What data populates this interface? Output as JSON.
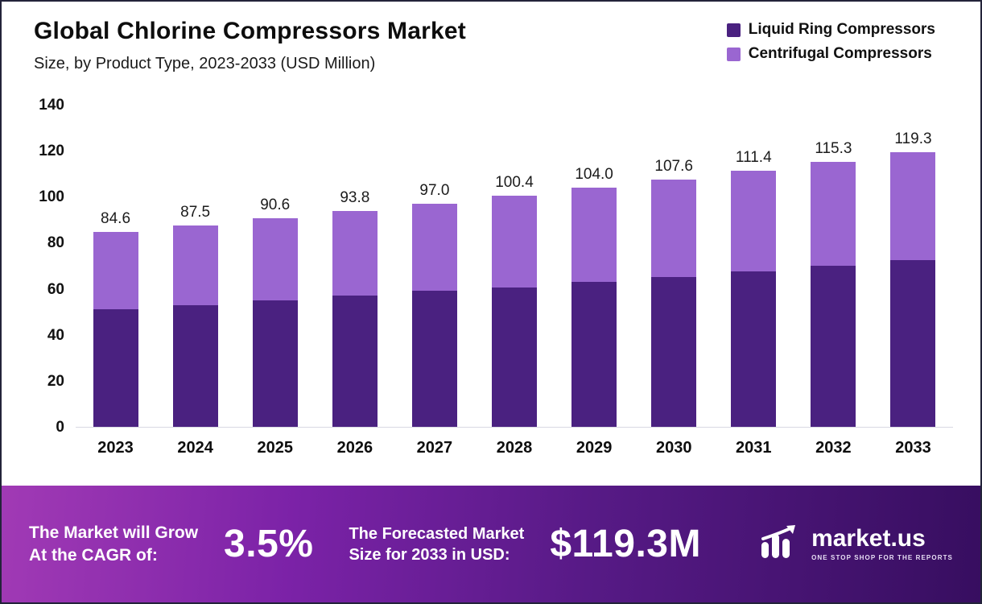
{
  "header": {
    "title": "Global Chlorine Compressors Market",
    "subtitle": "Size, by Product Type, 2023-2033 (USD Million)"
  },
  "legend": {
    "items": [
      {
        "label": "Liquid Ring Compressors",
        "color": "#4a2180"
      },
      {
        "label": "Centrifugal Compressors",
        "color": "#9a66d1"
      }
    ]
  },
  "chart_data": {
    "type": "bar",
    "stacked": true,
    "title": "Global Chlorine Compressors Market Size, by Product Type, 2023-2033 (USD Million)",
    "xlabel": "",
    "ylabel": "USD Million",
    "ylim": [
      0,
      140
    ],
    "yticks": [
      0,
      20,
      40,
      60,
      80,
      100,
      120,
      140
    ],
    "grid": false,
    "legend_position": "top-right",
    "categories": [
      "2023",
      "2024",
      "2025",
      "2026",
      "2027",
      "2028",
      "2029",
      "2030",
      "2031",
      "2032",
      "2033"
    ],
    "series": [
      {
        "name": "Liquid Ring Compressors",
        "color": "#4a2180",
        "values": [
          51.0,
          53.0,
          55.0,
          57.0,
          59.0,
          60.5,
          63.0,
          65.0,
          67.5,
          70.0,
          72.5
        ]
      },
      {
        "name": "Centrifugal Compressors",
        "color": "#9a66d1",
        "values": [
          33.6,
          34.5,
          35.6,
          36.8,
          38.0,
          39.9,
          41.0,
          42.6,
          43.9,
          45.3,
          46.8
        ]
      }
    ],
    "totals": [
      84.6,
      87.5,
      90.6,
      93.8,
      97.0,
      100.4,
      104.0,
      107.6,
      111.4,
      115.3,
      119.3
    ],
    "totals_labels": [
      "84.6",
      "87.5",
      "90.6",
      "93.8",
      "97.0",
      "100.4",
      "104.0",
      "107.6",
      "111.4",
      "115.3",
      "119.3"
    ]
  },
  "banner": {
    "cagr_label_line1": "The Market will Grow",
    "cagr_label_line2": "At the CAGR of:",
    "cagr_value": "3.5%",
    "forecast_label_line1": "The Forecasted Market",
    "forecast_label_line2": "Size for 2033 in USD:",
    "forecast_value": "$119.3M",
    "logo_text": "market.us",
    "logo_tagline": "One Stop Shop For The Reports"
  }
}
